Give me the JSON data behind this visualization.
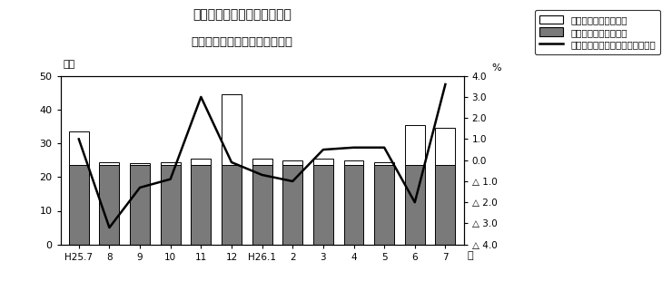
{
  "title_line1": "第１図　現金給与総額の推移",
  "title_line2": "（規模５人以上　調査産業計）",
  "xlabel": "月",
  "ylabel_left": "万円",
  "ylabel_right": "%",
  "x_labels": [
    "H25.7",
    "8",
    "9",
    "10",
    "11",
    "12",
    "H26.1",
    "2",
    "3",
    "4",
    "5",
    "6",
    "7"
  ],
  "total_bars": [
    33.5,
    24.5,
    24.0,
    24.5,
    25.5,
    44.5,
    25.5,
    25.0,
    25.5,
    25.0,
    24.5,
    35.5,
    34.5
  ],
  "regular_bars": [
    23.5,
    23.5,
    23.5,
    23.5,
    23.5,
    23.5,
    23.5,
    23.5,
    23.5,
    23.5,
    23.5,
    23.5,
    23.5
  ],
  "line_values": [
    1.0,
    -3.2,
    -1.3,
    -0.9,
    3.0,
    -0.1,
    -0.7,
    -1.0,
    0.5,
    0.6,
    0.6,
    -2.0,
    3.6
  ],
  "bar_color_special": "#ffffff",
  "bar_color_regular": "#7a7a7a",
  "bar_edge_color": "#000000",
  "line_color": "#000000",
  "ylim_left": [
    0,
    50
  ],
  "ylim_right": [
    -4.0,
    4.0
  ],
  "yticks_right": [
    4.0,
    3.0,
    2.0,
    1.0,
    0.0,
    -1.0,
    -2.0,
    -3.0,
    -4.0
  ],
  "ytick_labels_right": [
    "4.0",
    "3.0",
    "2.0",
    "1.0",
    "0.0",
    "△ 1.0",
    "△ 2.0",
    "△ 3.0",
    "△ 4.0"
  ],
  "legend_special": "特別に支払われた給与",
  "legend_regular": "きまって支給する給与",
  "legend_line": "現金給与総額対前年同月比（％）",
  "background_color": "#ffffff",
  "fig_width": 7.4,
  "fig_height": 3.1
}
